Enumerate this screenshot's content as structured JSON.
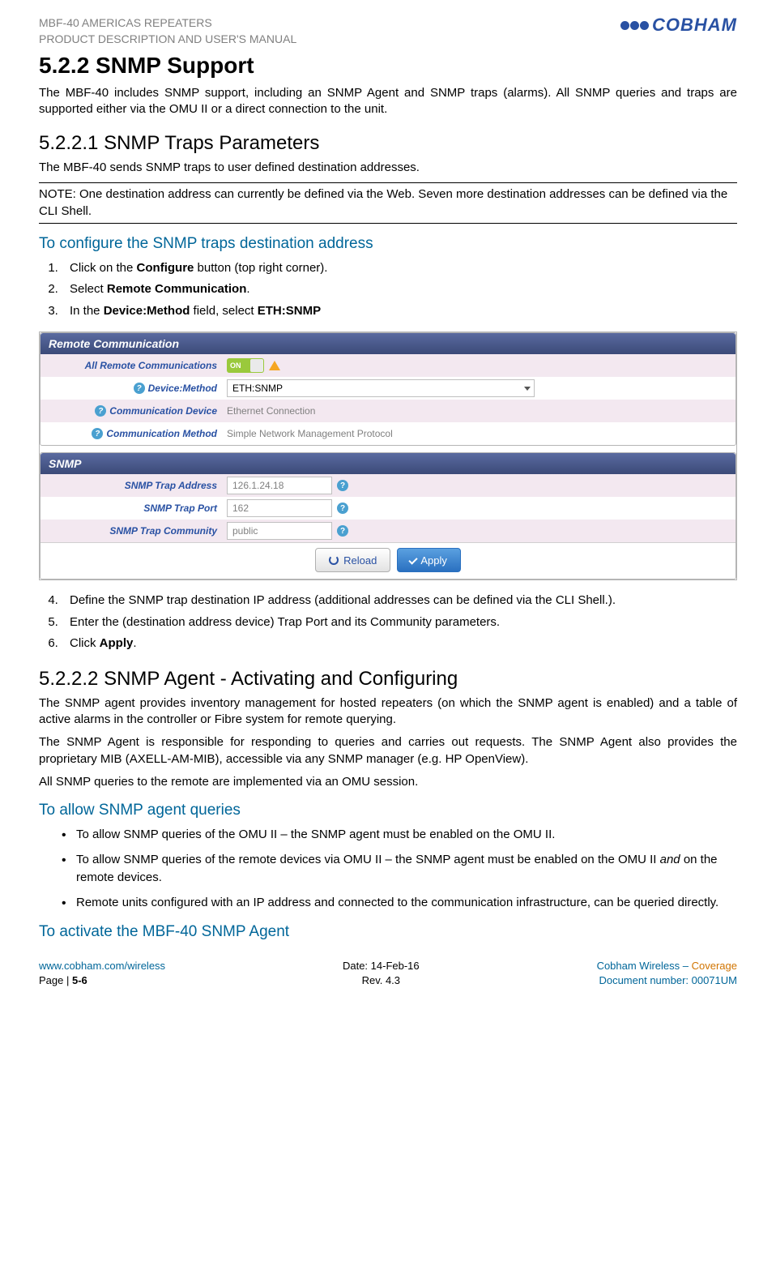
{
  "header": {
    "line1": "MBF-40 AMERICAS REPEATERS",
    "line2": "PRODUCT DESCRIPTION AND USER'S MANUAL",
    "logo_text": "COBHAM",
    "logo_color": "#2951a3"
  },
  "section": {
    "h2": "5.2.2   SNMP Support",
    "p1": "The MBF-40 includes SNMP support, including an SNMP Agent and SNMP traps (alarms). All SNMP queries and traps are supported either via the OMU II or a direct connection to the unit.",
    "h3a": "5.2.2.1   SNMP Traps Parameters",
    "p2": "The MBF-40 sends SNMP traps to user defined destination addresses.",
    "note": "NOTE: One destination address can currently be defined via the Web. Seven more destination addresses can be defined via the CLI Shell.",
    "blue1": "To configure the SNMP traps destination address",
    "step1_a": "Click on the ",
    "step1_b": "Configure",
    "step1_c": " button (top right corner).",
    "step2_a": "Select ",
    "step2_b": "Remote Communication",
    "step2_c": ".",
    "step3_a": "In the ",
    "step3_b": "Device:Method",
    "step3_c": " field, select ",
    "step3_d": "ETH:SNMP",
    "step4": "Define the SNMP trap destination IP address (additional addresses can be defined via the CLI Shell.).",
    "step5": "Enter the (destination address device) Trap Port and its Community parameters.",
    "step6_a": "Click ",
    "step6_b": "Apply",
    "step6_c": ".",
    "h3b": "5.2.2.2   SNMP Agent - Activating and Configuring",
    "p3": "The SNMP agent provides inventory management for hosted repeaters (on which the SNMP agent is enabled) and a table of active alarms in the controller or Fibre system for remote querying.",
    "p4": "The SNMP Agent is responsible for responding to queries and carries out requests. The SNMP Agent also provides the proprietary MIB (AXELL-AM-MIB), accessible via any SNMP manager (e.g. HP OpenView).",
    "p5": "All SNMP queries to the remote are implemented via an OMU session.",
    "blue2": "To allow SNMP agent queries",
    "b1": "To allow SNMP queries of the OMU II – the SNMP agent must be enabled on the OMU II.",
    "b2_a": "To allow SNMP queries of the remote devices via OMU II – the SNMP agent must be enabled on the OMU II ",
    "b2_and": "and",
    "b2_b": " on the remote devices.",
    "b3": "Remote units configured with an IP address and connected to the communication infrastructure, can be queried directly.",
    "blue3": "To activate the MBF-40 SNMP Agent"
  },
  "screenshot": {
    "panel1": {
      "title": "Remote Communication",
      "rows": [
        {
          "label": "All Remote Communications",
          "type": "toggle",
          "value": "ON"
        },
        {
          "label": "Device:Method",
          "type": "select",
          "value": "ETH:SNMP",
          "help": true
        },
        {
          "label": "Communication Device",
          "type": "text",
          "value": "Ethernet Connection",
          "help": true
        },
        {
          "label": "Communication Method",
          "type": "text",
          "value": "Simple Network Management Protocol",
          "help": true
        }
      ]
    },
    "panel2": {
      "title": "SNMP",
      "rows": [
        {
          "label": "SNMP Trap Address",
          "type": "input",
          "value": "126.1.24.18"
        },
        {
          "label": "SNMP Trap Port",
          "type": "input",
          "value": "162"
        },
        {
          "label": "SNMP Trap Community",
          "type": "input",
          "value": "public"
        }
      ],
      "buttons": {
        "reload": "Reload",
        "apply": "Apply"
      }
    }
  },
  "footer": {
    "l1": "www.cobham.com/wireless",
    "l2_a": "Page | ",
    "l2_b": "5-6",
    "c1": "Date: 14-Feb-16",
    "c2": "Rev. 4.3",
    "r1_a": "Cobham Wireless – ",
    "r1_b": "Coverage",
    "r2": "Document number: 00071UM"
  }
}
